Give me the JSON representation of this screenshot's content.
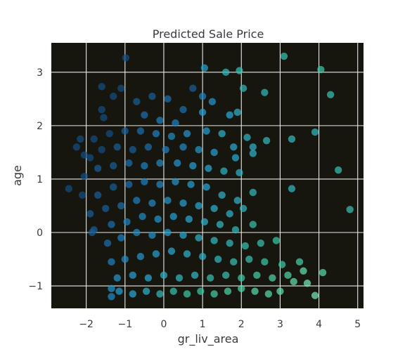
{
  "chart_data": {
    "type": "scatter",
    "title": "Predicted Sale Price",
    "xlabel": "gr_liv_area",
    "ylabel": "age",
    "xlim": [
      -2.9,
      5.15
    ],
    "ylim": [
      -1.42,
      3.55
    ],
    "xticks": [
      -2,
      -1,
      0,
      1,
      2,
      3,
      4,
      5
    ],
    "xtick_labels": [
      "−2",
      "−1",
      "0",
      "1",
      "2",
      "3",
      "4",
      "5"
    ],
    "yticks": [
      -1,
      0,
      1,
      2,
      3
    ],
    "ytick_labels": [
      "−1",
      "0",
      "1",
      "2",
      "3"
    ],
    "grid": true,
    "background_color": "#16160f",
    "grid_color": "#e8e8e8",
    "colormap": [
      "#0f3b6e",
      "#1f7fbf",
      "#2aa8d4",
      "#3cc6a4",
      "#5fe0a8",
      "#c8f0dc"
    ],
    "color_by": "predicted sale price (low = dark blue, high = pale green)",
    "points": [
      {
        "x": -0.98,
        "y": 3.27,
        "c": 0.05
      },
      {
        "x": 3.1,
        "y": 3.3,
        "c": 0.55
      },
      {
        "x": 4.05,
        "y": 3.05,
        "c": 0.6
      },
      {
        "x": 1.05,
        "y": 3.08,
        "c": 0.35
      },
      {
        "x": 1.95,
        "y": 3.03,
        "c": 0.55
      },
      {
        "x": 1.6,
        "y": 3.0,
        "c": 0.5
      },
      {
        "x": 4.3,
        "y": 2.58,
        "c": 0.55
      },
      {
        "x": 2.6,
        "y": 2.62,
        "c": 0.5
      },
      {
        "x": 2.05,
        "y": 2.7,
        "c": 0.5
      },
      {
        "x": 0.75,
        "y": 2.7,
        "c": 0.1
      },
      {
        "x": -1.6,
        "y": 2.73,
        "c": 0.05
      },
      {
        "x": -1.1,
        "y": 2.7,
        "c": 0.05
      },
      {
        "x": 1.0,
        "y": 2.55,
        "c": 0.2
      },
      {
        "x": 1.25,
        "y": 2.45,
        "c": 0.3
      },
      {
        "x": 0.1,
        "y": 2.5,
        "c": 0.15
      },
      {
        "x": -0.3,
        "y": 2.55,
        "c": 0.1
      },
      {
        "x": -0.7,
        "y": 2.45,
        "c": 0.1
      },
      {
        "x": -1.3,
        "y": 2.55,
        "c": 0.05
      },
      {
        "x": 1.7,
        "y": 2.2,
        "c": 0.4
      },
      {
        "x": 1.9,
        "y": 2.25,
        "c": 0.45
      },
      {
        "x": 0.5,
        "y": 2.3,
        "c": 0.15
      },
      {
        "x": -1.6,
        "y": 2.3,
        "c": 0.05
      },
      {
        "x": -1.55,
        "y": 2.15,
        "c": 0.05
      },
      {
        "x": -0.5,
        "y": 2.2,
        "c": 0.15
      },
      {
        "x": 1.0,
        "y": 2.25,
        "c": 0.35
      },
      {
        "x": 0.3,
        "y": 2.05,
        "c": 0.2
      },
      {
        "x": -0.1,
        "y": 2.1,
        "c": 0.2
      },
      {
        "x": 3.9,
        "y": 1.88,
        "c": 0.5
      },
      {
        "x": 3.3,
        "y": 1.75,
        "c": 0.5
      },
      {
        "x": 2.65,
        "y": 1.72,
        "c": 0.5
      },
      {
        "x": 2.15,
        "y": 1.78,
        "c": 0.45
      },
      {
        "x": 2.3,
        "y": 1.6,
        "c": 0.45
      },
      {
        "x": 1.8,
        "y": 1.6,
        "c": 0.4
      },
      {
        "x": 1.5,
        "y": 1.85,
        "c": 0.45
      },
      {
        "x": 1.1,
        "y": 1.9,
        "c": 0.35
      },
      {
        "x": 0.6,
        "y": 1.85,
        "c": 0.3
      },
      {
        "x": 0.2,
        "y": 1.8,
        "c": 0.25
      },
      {
        "x": -0.2,
        "y": 1.85,
        "c": 0.2
      },
      {
        "x": -0.6,
        "y": 1.9,
        "c": 0.15
      },
      {
        "x": -1.0,
        "y": 1.9,
        "c": 0.1
      },
      {
        "x": -1.4,
        "y": 1.85,
        "c": 0.05
      },
      {
        "x": -1.8,
        "y": 1.75,
        "c": 0.05
      },
      {
        "x": -2.15,
        "y": 1.75,
        "c": 0.05
      },
      {
        "x": -2.25,
        "y": 1.6,
        "c": 0.05
      },
      {
        "x": -2.05,
        "y": 1.45,
        "c": 0.05
      },
      {
        "x": 2.3,
        "y": 1.48,
        "c": 0.45
      },
      {
        "x": 1.85,
        "y": 1.4,
        "c": 0.4
      },
      {
        "x": 1.3,
        "y": 1.5,
        "c": 0.35
      },
      {
        "x": 0.9,
        "y": 1.55,
        "c": 0.3
      },
      {
        "x": 0.5,
        "y": 1.6,
        "c": 0.25
      },
      {
        "x": 0.05,
        "y": 1.55,
        "c": 0.2
      },
      {
        "x": -0.4,
        "y": 1.6,
        "c": 0.15
      },
      {
        "x": -0.8,
        "y": 1.55,
        "c": 0.1
      },
      {
        "x": -1.2,
        "y": 1.6,
        "c": 0.1
      },
      {
        "x": -1.6,
        "y": 1.55,
        "c": 0.05
      },
      {
        "x": -1.9,
        "y": 1.4,
        "c": 0.05
      },
      {
        "x": 4.5,
        "y": 1.17,
        "c": 0.55
      },
      {
        "x": 1.95,
        "y": 1.12,
        "c": 0.45
      },
      {
        "x": 1.55,
        "y": 1.15,
        "c": 0.45
      },
      {
        "x": 1.15,
        "y": 1.2,
        "c": 0.4
      },
      {
        "x": 0.75,
        "y": 1.25,
        "c": 0.35
      },
      {
        "x": 0.35,
        "y": 1.3,
        "c": 0.3
      },
      {
        "x": -0.1,
        "y": 1.3,
        "c": 0.25
      },
      {
        "x": -0.5,
        "y": 1.25,
        "c": 0.2
      },
      {
        "x": -0.9,
        "y": 1.3,
        "c": 0.15
      },
      {
        "x": -1.3,
        "y": 1.25,
        "c": 0.1
      },
      {
        "x": -1.7,
        "y": 1.2,
        "c": 0.1
      },
      {
        "x": -2.05,
        "y": 1.05,
        "c": 0.05
      },
      {
        "x": -2.45,
        "y": 0.82,
        "c": 0.05
      },
      {
        "x": -2.1,
        "y": 0.7,
        "c": 0.05
      },
      {
        "x": 3.3,
        "y": 0.82,
        "c": 0.5
      },
      {
        "x": 4.8,
        "y": 0.43,
        "c": 0.55
      },
      {
        "x": 2.3,
        "y": 0.75,
        "c": 0.5
      },
      {
        "x": 1.9,
        "y": 0.6,
        "c": 0.45
      },
      {
        "x": 1.5,
        "y": 0.7,
        "c": 0.45
      },
      {
        "x": 1.1,
        "y": 0.85,
        "c": 0.4
      },
      {
        "x": 0.7,
        "y": 0.9,
        "c": 0.35
      },
      {
        "x": 0.3,
        "y": 0.95,
        "c": 0.3
      },
      {
        "x": -0.1,
        "y": 0.9,
        "c": 0.25
      },
      {
        "x": -0.5,
        "y": 0.95,
        "c": 0.2
      },
      {
        "x": -0.9,
        "y": 0.9,
        "c": 0.15
      },
      {
        "x": -1.3,
        "y": 0.85,
        "c": 0.1
      },
      {
        "x": -1.7,
        "y": 0.7,
        "c": 0.1
      },
      {
        "x": 2.05,
        "y": 0.45,
        "c": 0.5
      },
      {
        "x": 1.7,
        "y": 0.35,
        "c": 0.45
      },
      {
        "x": 1.3,
        "y": 0.45,
        "c": 0.45
      },
      {
        "x": 0.9,
        "y": 0.5,
        "c": 0.4
      },
      {
        "x": 0.5,
        "y": 0.55,
        "c": 0.35
      },
      {
        "x": 0.1,
        "y": 0.6,
        "c": 0.3
      },
      {
        "x": -0.3,
        "y": 0.55,
        "c": 0.25
      },
      {
        "x": -0.7,
        "y": 0.6,
        "c": 0.2
      },
      {
        "x": -1.1,
        "y": 0.5,
        "c": 0.15
      },
      {
        "x": -1.5,
        "y": 0.45,
        "c": 0.1
      },
      {
        "x": -1.9,
        "y": 0.35,
        "c": 0.1
      },
      {
        "x": -1.8,
        "y": 0.05,
        "c": 0.1
      },
      {
        "x": -1.85,
        "y": 0.0,
        "c": 0.1
      },
      {
        "x": 2.3,
        "y": 0.15,
        "c": 0.55
      },
      {
        "x": 1.85,
        "y": 0.05,
        "c": 0.5
      },
      {
        "x": 1.45,
        "y": 0.15,
        "c": 0.5
      },
      {
        "x": 1.05,
        "y": 0.2,
        "c": 0.45
      },
      {
        "x": 0.65,
        "y": 0.25,
        "c": 0.4
      },
      {
        "x": 0.25,
        "y": 0.3,
        "c": 0.35
      },
      {
        "x": -0.15,
        "y": 0.25,
        "c": 0.3
      },
      {
        "x": -0.55,
        "y": 0.3,
        "c": 0.25
      },
      {
        "x": -0.95,
        "y": 0.2,
        "c": 0.2
      },
      {
        "x": -1.35,
        "y": 0.15,
        "c": 0.15
      },
      {
        "x": 2.9,
        "y": -0.15,
        "c": 0.6
      },
      {
        "x": 2.5,
        "y": -0.2,
        "c": 0.55
      },
      {
        "x": 2.1,
        "y": -0.25,
        "c": 0.55
      },
      {
        "x": 1.7,
        "y": -0.2,
        "c": 0.5
      },
      {
        "x": 1.3,
        "y": -0.15,
        "c": 0.5
      },
      {
        "x": 0.9,
        "y": -0.1,
        "c": 0.45
      },
      {
        "x": 0.5,
        "y": -0.05,
        "c": 0.4
      },
      {
        "x": 0.1,
        "y": 0.0,
        "c": 0.35
      },
      {
        "x": -0.3,
        "y": -0.05,
        "c": 0.3
      },
      {
        "x": -0.7,
        "y": 0.0,
        "c": 0.25
      },
      {
        "x": -1.1,
        "y": -0.1,
        "c": 0.2
      },
      {
        "x": -1.45,
        "y": -0.2,
        "c": 0.15
      },
      {
        "x": 3.5,
        "y": -0.55,
        "c": 0.65
      },
      {
        "x": 3.05,
        "y": -0.6,
        "c": 0.6
      },
      {
        "x": 2.6,
        "y": -0.55,
        "c": 0.6
      },
      {
        "x": 2.2,
        "y": -0.5,
        "c": 0.55
      },
      {
        "x": 1.8,
        "y": -0.55,
        "c": 0.55
      },
      {
        "x": 1.4,
        "y": -0.5,
        "c": 0.5
      },
      {
        "x": 1.0,
        "y": -0.45,
        "c": 0.45
      },
      {
        "x": 0.6,
        "y": -0.4,
        "c": 0.45
      },
      {
        "x": 0.2,
        "y": -0.35,
        "c": 0.4
      },
      {
        "x": -0.2,
        "y": -0.4,
        "c": 0.35
      },
      {
        "x": -0.6,
        "y": -0.45,
        "c": 0.3
      },
      {
        "x": -1.0,
        "y": -0.5,
        "c": 0.25
      },
      {
        "x": -1.35,
        "y": -0.55,
        "c": 0.2
      },
      {
        "x": 4.1,
        "y": -0.75,
        "c": 0.75
      },
      {
        "x": 3.6,
        "y": -0.72,
        "c": 0.8
      },
      {
        "x": 3.2,
        "y": -0.8,
        "c": 0.7
      },
      {
        "x": 2.8,
        "y": -0.85,
        "c": 0.7
      },
      {
        "x": 2.4,
        "y": -0.8,
        "c": 0.65
      },
      {
        "x": 2.0,
        "y": -0.85,
        "c": 0.6
      },
      {
        "x": 1.6,
        "y": -0.8,
        "c": 0.55
      },
      {
        "x": 1.2,
        "y": -0.85,
        "c": 0.55
      },
      {
        "x": 0.8,
        "y": -0.8,
        "c": 0.5
      },
      {
        "x": 0.4,
        "y": -0.85,
        "c": 0.5
      },
      {
        "x": 0.0,
        "y": -0.8,
        "c": 0.45
      },
      {
        "x": -0.4,
        "y": -0.85,
        "c": 0.4
      },
      {
        "x": -0.8,
        "y": -0.8,
        "c": 0.35
      },
      {
        "x": -1.2,
        "y": -0.85,
        "c": 0.3
      },
      {
        "x": 3.9,
        "y": -1.18,
        "c": 0.85
      },
      {
        "x": 3.7,
        "y": -0.95,
        "c": 0.85
      },
      {
        "x": 3.35,
        "y": -0.92,
        "c": 0.8
      },
      {
        "x": 3.0,
        "y": -1.1,
        "c": 0.8
      },
      {
        "x": 2.7,
        "y": -1.15,
        "c": 0.75
      },
      {
        "x": 2.35,
        "y": -1.1,
        "c": 0.75
      },
      {
        "x": 2.0,
        "y": -1.05,
        "c": 0.7
      },
      {
        "x": 1.65,
        "y": -1.1,
        "c": 0.7
      },
      {
        "x": 1.3,
        "y": -1.15,
        "c": 0.65
      },
      {
        "x": 0.95,
        "y": -1.1,
        "c": 0.6
      },
      {
        "x": 0.6,
        "y": -1.15,
        "c": 0.6
      },
      {
        "x": 0.25,
        "y": -1.1,
        "c": 0.55
      },
      {
        "x": -0.1,
        "y": -1.15,
        "c": 0.5
      },
      {
        "x": -0.45,
        "y": -1.1,
        "c": 0.45
      },
      {
        "x": -0.8,
        "y": -1.15,
        "c": 0.4
      },
      {
        "x": -1.15,
        "y": -1.1,
        "c": 0.35
      },
      {
        "x": -1.35,
        "y": -1.05,
        "c": 0.3
      },
      {
        "x": -1.35,
        "y": -1.2,
        "c": 0.25
      }
    ]
  }
}
